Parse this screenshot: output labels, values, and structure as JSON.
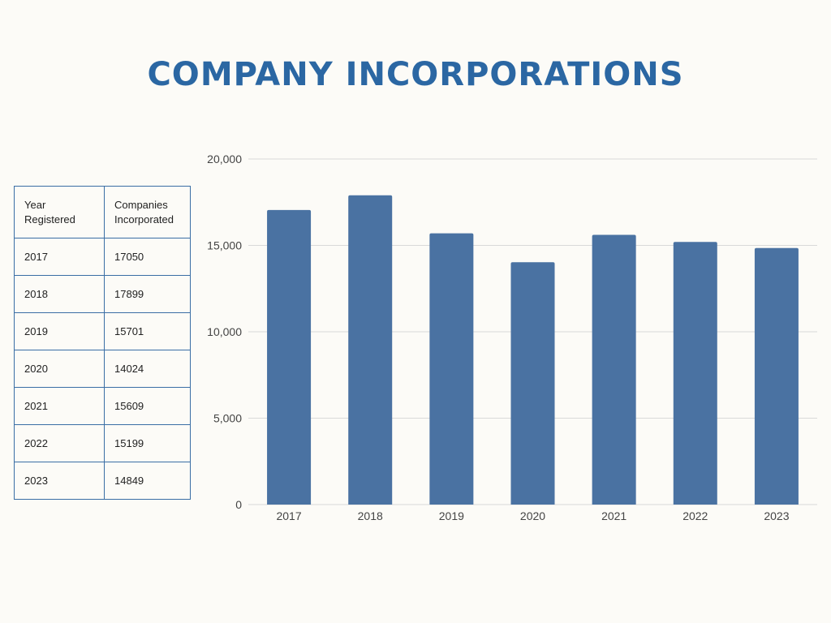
{
  "title": "COMPANY INCORPORATIONS",
  "colors": {
    "accent": "#2b67a3",
    "bar": "#4a72a2",
    "grid": "#d9d9d9",
    "table_border": "#3a6ea5"
  },
  "table": {
    "headers": [
      "Year Registered",
      "Companies Incorporated"
    ],
    "rows": [
      [
        "2017",
        "17050"
      ],
      [
        "2018",
        "17899"
      ],
      [
        "2019",
        "15701"
      ],
      [
        "2020",
        "14024"
      ],
      [
        "2021",
        "15609"
      ],
      [
        "2022",
        "15199"
      ],
      [
        "2023",
        "14849"
      ]
    ]
  },
  "chart_data": {
    "type": "bar",
    "title": "",
    "xlabel": "",
    "ylabel": "",
    "categories": [
      "2017",
      "2018",
      "2019",
      "2020",
      "2021",
      "2022",
      "2023"
    ],
    "values": [
      17050,
      17899,
      15701,
      14024,
      15609,
      15199,
      14849
    ],
    "ylim": [
      0,
      20000
    ],
    "yticks": [
      0,
      5000,
      10000,
      15000,
      20000
    ],
    "ytick_labels": [
      "0",
      "5,000",
      "10,000",
      "15,000",
      "20,000"
    ],
    "grid": true,
    "legend": "none"
  }
}
